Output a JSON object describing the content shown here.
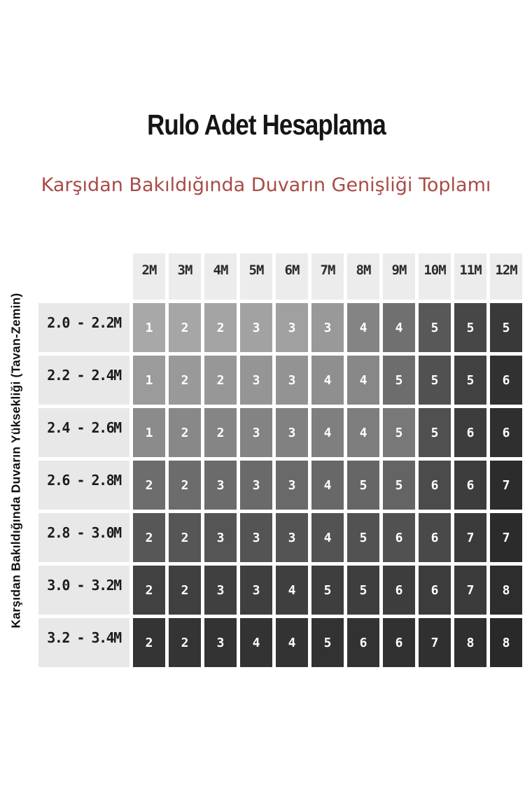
{
  "title": "Rulo Adet Hesaplama",
  "subtitle": "Karşıdan Bakıldığında Duvarın Genişliği Toplamı",
  "y_axis_label": "Karşıdan Bakıldığında Duvarın Yüksekliği (Tavan-Zemin)",
  "colors": {
    "background": "#ffffff",
    "title_text": "#151515",
    "subtitle_red": "#a94b46",
    "column_header_bg": "#ececec",
    "row_label_bg": "#e8e8e8",
    "cell_text": "#ffffff"
  },
  "chart_data": {
    "type": "heatmap",
    "title": "Rulo Adet Hesaplama",
    "x_axis_title": "Karşıdan Bakıldığında Duvarın Genişliği Toplamı",
    "y_axis_title": "Karşıdan Bakıldığında Duvarın Yüksekliği (Tavan-Zemin)",
    "x_categories": [
      "2M",
      "3M",
      "4M",
      "5M",
      "6M",
      "7M",
      "8M",
      "9M",
      "10M",
      "11M",
      "12M"
    ],
    "y_categories": [
      "2.0 - 2.2M",
      "2.2 - 2.4M",
      "2.4 - 2.6M",
      "2.6 - 2.8M",
      "2.8 - 3.0M",
      "3.0 - 3.2M",
      "3.2 - 3.4M"
    ],
    "values": [
      [
        1,
        2,
        2,
        3,
        3,
        3,
        4,
        4,
        5,
        5,
        5
      ],
      [
        1,
        2,
        2,
        3,
        3,
        4,
        4,
        5,
        5,
        5,
        6
      ],
      [
        1,
        2,
        2,
        3,
        3,
        4,
        4,
        5,
        5,
        6,
        6
      ],
      [
        2,
        2,
        3,
        3,
        3,
        4,
        5,
        5,
        6,
        6,
        7
      ],
      [
        2,
        2,
        3,
        3,
        3,
        4,
        5,
        6,
        6,
        7,
        7
      ],
      [
        2,
        2,
        3,
        3,
        4,
        5,
        5,
        6,
        6,
        7,
        8
      ],
      [
        2,
        2,
        3,
        4,
        4,
        5,
        6,
        6,
        7,
        8,
        8
      ]
    ],
    "cell_colors": [
      [
        "#a8a8a8",
        "#a6a6a6",
        "#a4a4a4",
        "#a2a2a2",
        "#a0a0a0",
        "#999999",
        "#848484",
        "#707070",
        "#585858",
        "#474747",
        "#393939"
      ],
      [
        "#9b9b9b",
        "#999999",
        "#979797",
        "#959595",
        "#939393",
        "#8f8f8f",
        "#878787",
        "#6d6d6d",
        "#515151",
        "#414141",
        "#313131"
      ],
      [
        "#8b8b8b",
        "#888888",
        "#858585",
        "#838383",
        "#818181",
        "#7f7f7f",
        "#7d7d7d",
        "#787878",
        "#505050",
        "#3d3d3d",
        "#2f2f2f"
      ],
      [
        "#6d6d6d",
        "#6c6c6c",
        "#6b6b6b",
        "#6a6a6a",
        "#696969",
        "#686868",
        "#666666",
        "#646464",
        "#4b4b4b",
        "#3d3d3d",
        "#2c2c2c"
      ],
      [
        "#575757",
        "#565656",
        "#555555",
        "#545454",
        "#545454",
        "#535353",
        "#525252",
        "#515151",
        "#494949",
        "#3b3b3b",
        "#2b2b2b"
      ],
      [
        "#414141",
        "#404040",
        "#404040",
        "#3f3f3f",
        "#3f3f3f",
        "#3e3e3e",
        "#3e3e3e",
        "#3d3d3d",
        "#3c3c3c",
        "#3b3b3b",
        "#2d2d2d"
      ],
      [
        "#343434",
        "#343434",
        "#333333",
        "#333333",
        "#333333",
        "#323232",
        "#323232",
        "#313131",
        "#303030",
        "#2f2f2f",
        "#292929"
      ]
    ],
    "grid": "white gaps between cells",
    "legend_position": "none"
  }
}
